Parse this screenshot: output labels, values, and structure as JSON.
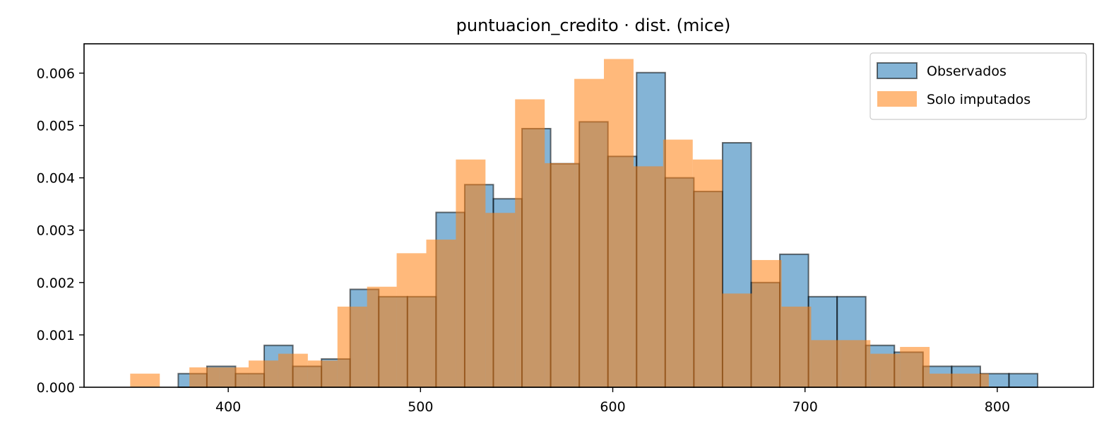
{
  "chart_data": {
    "type": "bar",
    "title": "puntuacion_credito · dist. (mice)",
    "xlabel": "",
    "ylabel": "",
    "xlim": [
      325,
      850
    ],
    "ylim": [
      0,
      0.00656
    ],
    "xticks": [
      400,
      500,
      600,
      700,
      800
    ],
    "yticks": [
      0.0,
      0.001,
      0.002,
      0.003,
      0.004,
      0.005,
      0.006
    ],
    "ytick_labels": [
      "0.000",
      "0.001",
      "0.002",
      "0.003",
      "0.004",
      "0.005",
      "0.006"
    ],
    "legend_position": "top-right",
    "grid": false,
    "series": [
      {
        "name": "Observados",
        "color": "#1f77b4",
        "edge_color": "#000000",
        "start": 374,
        "bin_width": 14.9,
        "values": [
          0.00026,
          0.0004,
          0.00026,
          0.0008,
          0.0004,
          0.00054,
          0.00187,
          0.00173,
          0.00173,
          0.00334,
          0.00387,
          0.0036,
          0.00494,
          0.00427,
          0.00507,
          0.00441,
          0.00601,
          0.004,
          0.00374,
          0.00467,
          0.002,
          0.00254,
          0.00173,
          0.00173,
          0.0008,
          0.00067,
          0.0004,
          0.0004,
          0.00026,
          0.00026
        ]
      },
      {
        "name": "Solo imputados",
        "color": "#ff7f0e",
        "edge_color": "none",
        "start": 349,
        "bin_width": 15.4,
        "values": [
          0.00026,
          0.0,
          0.00038,
          0.00038,
          0.00051,
          0.00064,
          0.00051,
          0.00154,
          0.00192,
          0.00256,
          0.00282,
          0.00435,
          0.00333,
          0.0055,
          0.00428,
          0.00589,
          0.00627,
          0.00422,
          0.00473,
          0.00435,
          0.00179,
          0.00243,
          0.00154,
          0.0009,
          0.0009,
          0.00064,
          0.00077,
          0.00026,
          0.00026,
          0.0
        ]
      }
    ]
  }
}
